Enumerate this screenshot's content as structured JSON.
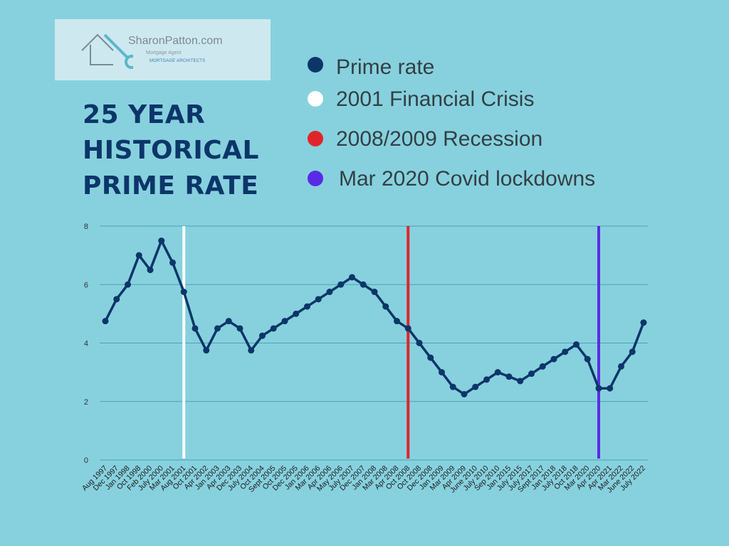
{
  "logo": {
    "main": "SharonPatton.com",
    "sub": "Mortgage Agent",
    "brand": "MORTGAGE ARCHITECTS"
  },
  "title_lines": [
    "25 YEAR",
    "HISTORICAL",
    "PRIME RATE"
  ],
  "legend": [
    {
      "label": "Prime rate",
      "color": "#0c3669"
    },
    {
      "label": "2001 Financial Crisis",
      "color": "#ffffff"
    },
    {
      "label": "2008/2009 Recession",
      "color": "#e0252a"
    },
    {
      "label": "Mar 2020 Covid lockdowns",
      "color": "#5a2be6"
    }
  ],
  "chart_data": {
    "type": "line",
    "title": "25 YEAR HISTORICAL PRIME RATE",
    "xlabel": "",
    "ylabel": "",
    "ylim": [
      0,
      8
    ],
    "yticks": [
      0,
      2,
      4,
      6,
      8
    ],
    "grid": true,
    "categories": [
      "Aug 1997",
      "Dec 1997",
      "Jan 1998",
      "Oct 1998",
      "Feb 2000",
      "July 2000",
      "Mar 2001",
      "Aug 2001",
      "Oct 2001",
      "Apr 2002",
      "Jan 2003",
      "Apr 2003",
      "Dec 2003",
      "July 2004",
      "Oct 2004",
      "Sept 2005",
      "Oct 2005",
      "Dec 2005",
      "Jan 2006",
      "Mar 2006",
      "Apr 2006",
      "May 2006",
      "July 2007",
      "Dec 2007",
      "Jan 2008",
      "Mar 2008",
      "Apr 2008",
      "Oct 2008",
      "Oct 2008",
      "Dec 2008",
      "Jan 2009",
      "Mar 2009",
      "Apr 2009",
      "June 2010",
      "July 2010",
      "Sep 2010",
      "Jan 2015",
      "July 2015",
      "July 2017",
      "Sept 2017",
      "Jan 2018",
      "July 2018",
      "Oct 2018",
      "Mar 2020",
      "Apr 2020",
      "Apr 2021",
      "Mar 2022",
      "June 2022",
      "July 2022"
    ],
    "series": [
      {
        "name": "Prime rate",
        "color": "#0c3669",
        "values": [
          4.75,
          5.5,
          6.0,
          7.0,
          6.5,
          7.5,
          6.75,
          5.75,
          4.5,
          3.75,
          4.5,
          4.75,
          4.5,
          3.75,
          4.25,
          4.5,
          4.75,
          5.0,
          5.25,
          5.5,
          5.75,
          6.0,
          6.25,
          6.0,
          5.75,
          5.25,
          4.75,
          4.5,
          4.0,
          3.5,
          3.0,
          2.5,
          2.25,
          2.5,
          2.75,
          3.0,
          2.85,
          2.7,
          2.95,
          3.2,
          3.45,
          3.7,
          3.95,
          3.45,
          2.45,
          2.45,
          3.2,
          3.7,
          4.7
        ]
      }
    ],
    "markers": [
      {
        "name": "2001 Financial Crisis",
        "category": "Aug 2001",
        "color": "#ffffff"
      },
      {
        "name": "2008/2009 Recession",
        "category": "Oct 2008",
        "color": "#e0252a"
      },
      {
        "name": "Mar 2020 Covid lockdowns",
        "category": "Apr 2020",
        "color": "#5a2be6"
      }
    ]
  }
}
